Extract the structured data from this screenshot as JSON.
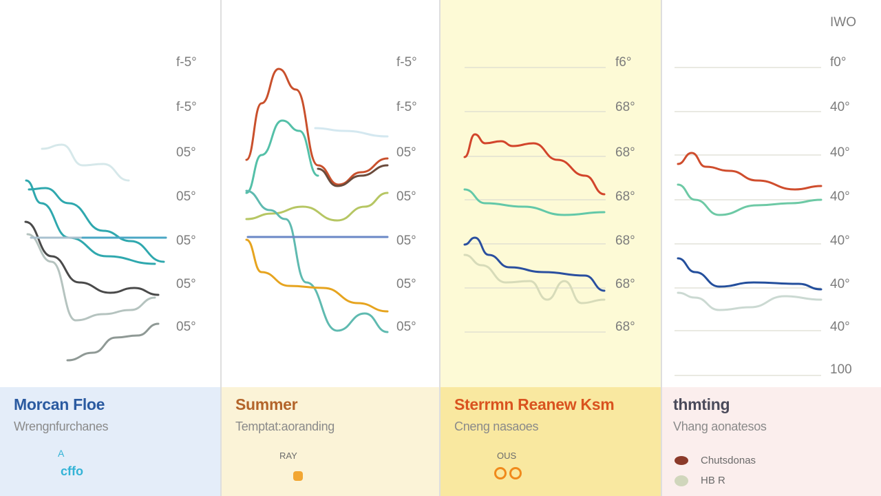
{
  "top_right_label": "IWO",
  "chart_data": [
    {
      "type": "line",
      "title": "Morcan Floe",
      "subtitle": "Wrengnfurchanes",
      "tick_labels": [
        "f-5°",
        "f-5°",
        "05°",
        "05°",
        "05°",
        "05°",
        "05°"
      ],
      "legend": {
        "text": "A",
        "text2": "cffo",
        "color": "#33b3d6"
      },
      "series": [
        {
          "color": "#d6e8ea",
          "values": [
            [
              61,
              216
            ],
            [
              90,
              210
            ],
            [
              120,
              240
            ],
            [
              150,
              238
            ],
            [
              187,
              262
            ]
          ]
        },
        {
          "color": "#2fa8ae",
          "values": [
            [
              38,
              262
            ],
            [
              60,
              295
            ],
            [
              100,
              345
            ],
            [
              155,
              372
            ],
            [
              225,
              383
            ]
          ]
        },
        {
          "color": "#2fa8ae",
          "values": [
            [
              42,
              275
            ],
            [
              66,
              273
            ],
            [
              100,
              295
            ],
            [
              150,
              335
            ],
            [
              190,
              350
            ],
            [
              238,
              380
            ]
          ]
        },
        {
          "color": "#4a4a4a",
          "values": [
            [
              37,
              322
            ],
            [
              75,
              372
            ],
            [
              115,
              410
            ],
            [
              160,
              425
            ],
            [
              195,
              418
            ],
            [
              230,
              428
            ]
          ]
        },
        {
          "color": "#b5c3bf",
          "values": [
            [
              40,
              340
            ],
            [
              75,
              380
            ],
            [
              110,
              465
            ],
            [
              150,
              456
            ],
            [
              190,
              450
            ],
            [
              225,
              432
            ]
          ]
        },
        {
          "color": "#8f9995",
          "values": [
            [
              98,
              523
            ],
            [
              135,
              512
            ],
            [
              168,
              490
            ],
            [
              200,
              487
            ],
            [
              230,
              470
            ]
          ]
        },
        {
          "color": "#a9c1cf",
          "values": [
            [
              45,
              345
            ],
            [
              241,
              345
            ]
          ]
        },
        {
          "color": "#4aa7c4",
          "values": [
            [
              120,
              345
            ],
            [
              241,
              345
            ]
          ]
        }
      ]
    },
    {
      "type": "line",
      "title": "Summer",
      "subtitle": "Temptat:aoranding",
      "tick_labels": [
        "f-5°",
        "f-5°",
        "05°",
        "05°",
        "05°",
        "05°",
        "05°"
      ],
      "legend": {
        "text": "RAY",
        "color": "#f2a632"
      },
      "series": [
        {
          "color": "#d4e8f0",
          "values": [
            [
              458,
              186
            ],
            [
              500,
              190
            ],
            [
              563,
              198
            ]
          ]
        },
        {
          "color": "#c9502c",
          "values": [
            [
              358,
              232
            ],
            [
              380,
              150
            ],
            [
              405,
              100
            ],
            [
              430,
              130
            ],
            [
              462,
              240
            ],
            [
              492,
              268
            ],
            [
              525,
              250
            ],
            [
              563,
              230
            ]
          ]
        },
        {
          "color": "#6a4b3c",
          "values": [
            [
              462,
              245
            ],
            [
              490,
              270
            ],
            [
              525,
              255
            ],
            [
              563,
              240
            ]
          ]
        },
        {
          "color": "#54c0a8",
          "values": [
            [
              358,
              280
            ],
            [
              380,
              225
            ],
            [
              410,
              175
            ],
            [
              435,
              190
            ],
            [
              462,
              255
            ]
          ]
        },
        {
          "color": "#b6c663",
          "values": [
            [
              358,
              318
            ],
            [
              395,
              310
            ],
            [
              440,
              300
            ],
            [
              490,
              320
            ],
            [
              530,
              300
            ],
            [
              563,
              280
            ]
          ]
        },
        {
          "color": "#5fbab0",
          "values": [
            [
              358,
              277
            ],
            [
              392,
              305
            ],
            [
              415,
              318
            ],
            [
              445,
              410
            ],
            [
              490,
              480
            ],
            [
              530,
              455
            ],
            [
              563,
              482
            ]
          ]
        },
        {
          "color": "#6a87c6",
          "values": [
            [
              360,
              344
            ],
            [
              563,
              344
            ]
          ]
        },
        {
          "color": "#e6a41f",
          "values": [
            [
              358,
              348
            ],
            [
              380,
              395
            ],
            [
              420,
              415
            ],
            [
              470,
              418
            ],
            [
              520,
              440
            ],
            [
              563,
              452
            ]
          ]
        }
      ]
    },
    {
      "type": "line",
      "title": "Sterrmn Reanew Ksm",
      "subtitle": "Cneng  nasaoes",
      "tick_labels": [
        "f6°",
        "68°",
        "68°",
        "68°",
        "68°",
        "68°",
        "68°"
      ],
      "legend": {
        "text": "OUS",
        "color": "#f08a1c"
      },
      "series": [
        {
          "color": "#d2452b",
          "values": [
            [
              675,
              228
            ],
            [
              690,
              195
            ],
            [
              705,
              208
            ],
            [
              728,
              205
            ],
            [
              745,
              212
            ],
            [
              775,
              208
            ],
            [
              810,
              232
            ],
            [
              850,
              255
            ],
            [
              878,
              282
            ]
          ]
        },
        {
          "color": "#63c8a8",
          "values": [
            [
              675,
              275
            ],
            [
              705,
              295
            ],
            [
              760,
              300
            ],
            [
              820,
              312
            ],
            [
              878,
              308
            ]
          ]
        },
        {
          "color": "#2a4f9f",
          "values": [
            [
              675,
              355
            ],
            [
              690,
              345
            ],
            [
              710,
              370
            ],
            [
              740,
              388
            ],
            [
              790,
              395
            ],
            [
              850,
              400
            ],
            [
              878,
              422
            ]
          ]
        },
        {
          "color": "#d7dbb9",
          "values": [
            [
              675,
              370
            ],
            [
              700,
              385
            ],
            [
              735,
              410
            ],
            [
              770,
              408
            ],
            [
              795,
              435
            ],
            [
              820,
              408
            ],
            [
              845,
              440
            ],
            [
              878,
              435
            ]
          ]
        }
      ]
    },
    {
      "type": "line",
      "title": "thmting",
      "subtitle": "Vhang  aonatesos",
      "tick_labels": [
        "f0°",
        "40°",
        "40°",
        "40°",
        "40°",
        "40°",
        "40°"
      ],
      "bottom_label": "100",
      "legend": [
        {
          "text": "Chutsdonas",
          "color": "#8b3a2a"
        },
        {
          "text": "HB R",
          "color": "#d0d6bc"
        }
      ],
      "series": [
        {
          "color": "#cf4d2d",
          "values": [
            [
              985,
              238
            ],
            [
              1005,
              222
            ],
            [
              1025,
              242
            ],
            [
              1060,
              248
            ],
            [
              1100,
              262
            ],
            [
              1155,
              275
            ],
            [
              1193,
              270
            ]
          ]
        },
        {
          "color": "#6dc9a5",
          "values": [
            [
              985,
              268
            ],
            [
              1010,
              290
            ],
            [
              1045,
              312
            ],
            [
              1100,
              298
            ],
            [
              1150,
              295
            ],
            [
              1193,
              290
            ]
          ]
        },
        {
          "color": "#244f9c",
          "values": [
            [
              985,
              375
            ],
            [
              1010,
              395
            ],
            [
              1045,
              416
            ],
            [
              1095,
              410
            ],
            [
              1160,
              412
            ],
            [
              1193,
              420
            ]
          ]
        },
        {
          "color": "#cbd9d2",
          "values": [
            [
              985,
              425
            ],
            [
              1010,
              432
            ],
            [
              1045,
              450
            ],
            [
              1090,
              446
            ],
            [
              1140,
              430
            ],
            [
              1193,
              435
            ]
          ]
        }
      ]
    }
  ]
}
